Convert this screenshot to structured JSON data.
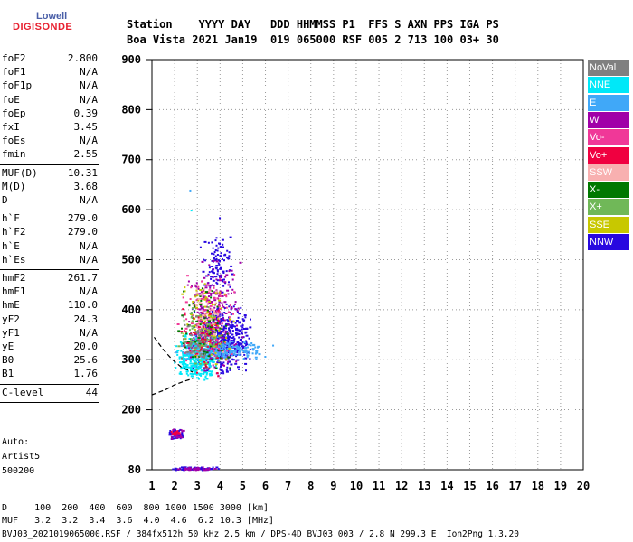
{
  "logo": {
    "top": "Lowell",
    "bottom": "DIGISONDE"
  },
  "header": {
    "row1": "Station    YYYY DAY   DDD HHMMSS P1  FFS S AXN PPS IGA PS",
    "row2": "Boa Vista 2021 Jan19  019 065000 RSF 005 2 713 100 03+ 30"
  },
  "params": [
    {
      "label": "foF2",
      "value": "2.800"
    },
    {
      "label": "foF1",
      "value": "N/A"
    },
    {
      "label": "foF1p",
      "value": "N/A"
    },
    {
      "label": "foE",
      "value": "N/A"
    },
    {
      "label": "foEp",
      "value": "0.39"
    },
    {
      "label": "fxI",
      "value": "3.45"
    },
    {
      "label": "foEs",
      "value": "N/A"
    },
    {
      "label": "fmin",
      "value": "2.55"
    },
    {
      "label": "MUF(D)",
      "value": "10.31"
    },
    {
      "label": "M(D)",
      "value": "3.68"
    },
    {
      "label": "D",
      "value": "N/A"
    },
    {
      "label": "h`F",
      "value": "279.0"
    },
    {
      "label": "h`F2",
      "value": "279.0"
    },
    {
      "label": "h`E",
      "value": "N/A"
    },
    {
      "label": "h`Es",
      "value": "N/A"
    },
    {
      "label": "hmF2",
      "value": "261.7"
    },
    {
      "label": "hmF1",
      "value": "N/A"
    },
    {
      "label": "hmE",
      "value": "110.0"
    },
    {
      "label": "yF2",
      "value": "24.3"
    },
    {
      "label": "yF1",
      "value": "N/A"
    },
    {
      "label": "yE",
      "value": "20.0"
    },
    {
      "label": "B0",
      "value": "25.6"
    },
    {
      "label": "B1",
      "value": "1.76"
    },
    {
      "label": "C-level",
      "value": "44"
    }
  ],
  "auto": {
    "line1": "Auto:",
    "line2": "Artist5",
    "line3": "500200"
  },
  "legend": [
    {
      "label": "NoVal",
      "color": "#808080"
    },
    {
      "label": "NNE",
      "color": "#00e8f8"
    },
    {
      "label": "E",
      "color": "#40a8f8"
    },
    {
      "label": "W",
      "color": "#a000a8"
    },
    {
      "label": "Vo-",
      "color": "#f03898"
    },
    {
      "label": "Vo+",
      "color": "#f00040"
    },
    {
      "label": "SSW",
      "color": "#f8b0b0"
    },
    {
      "label": "X-",
      "color": "#007800"
    },
    {
      "label": "X+",
      "color": "#70b858"
    },
    {
      "label": "SSE",
      "color": "#c8c800"
    },
    {
      "label": "NNW",
      "color": "#2808e0"
    }
  ],
  "footer": {
    "d_row": "D     100  200  400  600  800 1000 1500 3000 [km]",
    "muf_row": "MUF   3.2  3.2  3.4  3.6  4.0  4.6  6.2 10.3 [MHz]",
    "info": "BVJ03_2021019065000.RSF / 384fx512h 50 kHz 2.5 km / DPS-4D BVJ03 003 / 2.8 N 299.3 E  Ion2Png 1.3.20"
  },
  "chart_data": {
    "type": "scatter",
    "xlim": [
      1,
      20
    ],
    "ylim": [
      80,
      900
    ],
    "x_ticks": [
      1,
      2,
      3,
      4,
      5,
      6,
      7,
      8,
      9,
      10,
      11,
      12,
      13,
      14,
      15,
      16,
      17,
      18,
      19,
      20
    ],
    "y_ticks": [
      80,
      200,
      300,
      400,
      500,
      600,
      700,
      800,
      900
    ],
    "xlabel": "",
    "ylabel": "",
    "grid": true,
    "legend_position": "right",
    "clusters": [
      {
        "name": "NNW",
        "x": [
          2.6,
          5.4
        ],
        "y": [
          270,
          420
        ],
        "n": 500
      },
      {
        "name": "NNW",
        "x": [
          3.0,
          4.6
        ],
        "y": [
          420,
          560
        ],
        "n": 100
      },
      {
        "name": "NNE",
        "x": [
          1.9,
          4.0
        ],
        "y": [
          260,
          360
        ],
        "n": 420
      },
      {
        "name": "E",
        "x": [
          2.0,
          6.0
        ],
        "y": [
          300,
          340
        ],
        "n": 240
      },
      {
        "name": "W",
        "x": [
          2.4,
          5.0
        ],
        "y": [
          260,
          520
        ],
        "n": 220
      },
      {
        "name": "Vo-",
        "x": [
          2.0,
          4.8
        ],
        "y": [
          280,
          480
        ],
        "n": 120
      },
      {
        "name": "SSE",
        "x": [
          2.2,
          4.6
        ],
        "y": [
          280,
          460
        ],
        "n": 100
      },
      {
        "name": "X-",
        "x": [
          2.0,
          4.6
        ],
        "y": [
          260,
          450
        ],
        "n": 80
      },
      {
        "name": "X+",
        "x": [
          2.0,
          4.2
        ],
        "y": [
          280,
          420
        ],
        "n": 70
      },
      {
        "name": "SSW",
        "x": [
          2.4,
          4.2
        ],
        "y": [
          300,
          460
        ],
        "n": 50
      },
      {
        "name": "Vo+",
        "x": [
          2.0,
          4.4
        ],
        "y": [
          260,
          420
        ],
        "n": 60
      },
      {
        "name": "NoVal",
        "x": [
          2.0,
          4.0
        ],
        "y": [
          280,
          400
        ],
        "n": 50
      },
      {
        "name": "NNW",
        "x": [
          1.7,
          2.4
        ],
        "y": [
          140,
          165
        ],
        "n": 60
      },
      {
        "name": "W",
        "x": [
          1.7,
          2.4
        ],
        "y": [
          140,
          165
        ],
        "n": 30
      },
      {
        "name": "Vo+",
        "x": [
          1.7,
          2.2
        ],
        "y": [
          150,
          160
        ],
        "n": 15
      },
      {
        "name": "NNW",
        "x": [
          1.7,
          4.0
        ],
        "y": [
          80,
          87
        ],
        "n": 80
      },
      {
        "name": "W",
        "x": [
          1.7,
          4.0
        ],
        "y": [
          80,
          87
        ],
        "n": 40
      }
    ],
    "outliers": [
      {
        "name": "E",
        "x": [
          2.65
        ],
        "y": [
          640
        ]
      },
      {
        "name": "NNE",
        "x": [
          2.7
        ],
        "y": [
          600
        ]
      },
      {
        "name": "NNW",
        "x": [
          3.95
        ],
        "y": [
          585
        ]
      },
      {
        "name": "E",
        "x": [
          6.3
        ],
        "y": [
          330
        ]
      }
    ],
    "profile_curve": {
      "x": [
        1,
        1.6,
        2.0,
        2.5,
        2.8
      ],
      "y": [
        230,
        240,
        250,
        258,
        262
      ]
    },
    "extrapolation_curve": {
      "x": [
        1.1,
        1.5,
        1.9,
        2.3,
        2.8
      ],
      "y": [
        345,
        320,
        300,
        285,
        275
      ]
    }
  }
}
